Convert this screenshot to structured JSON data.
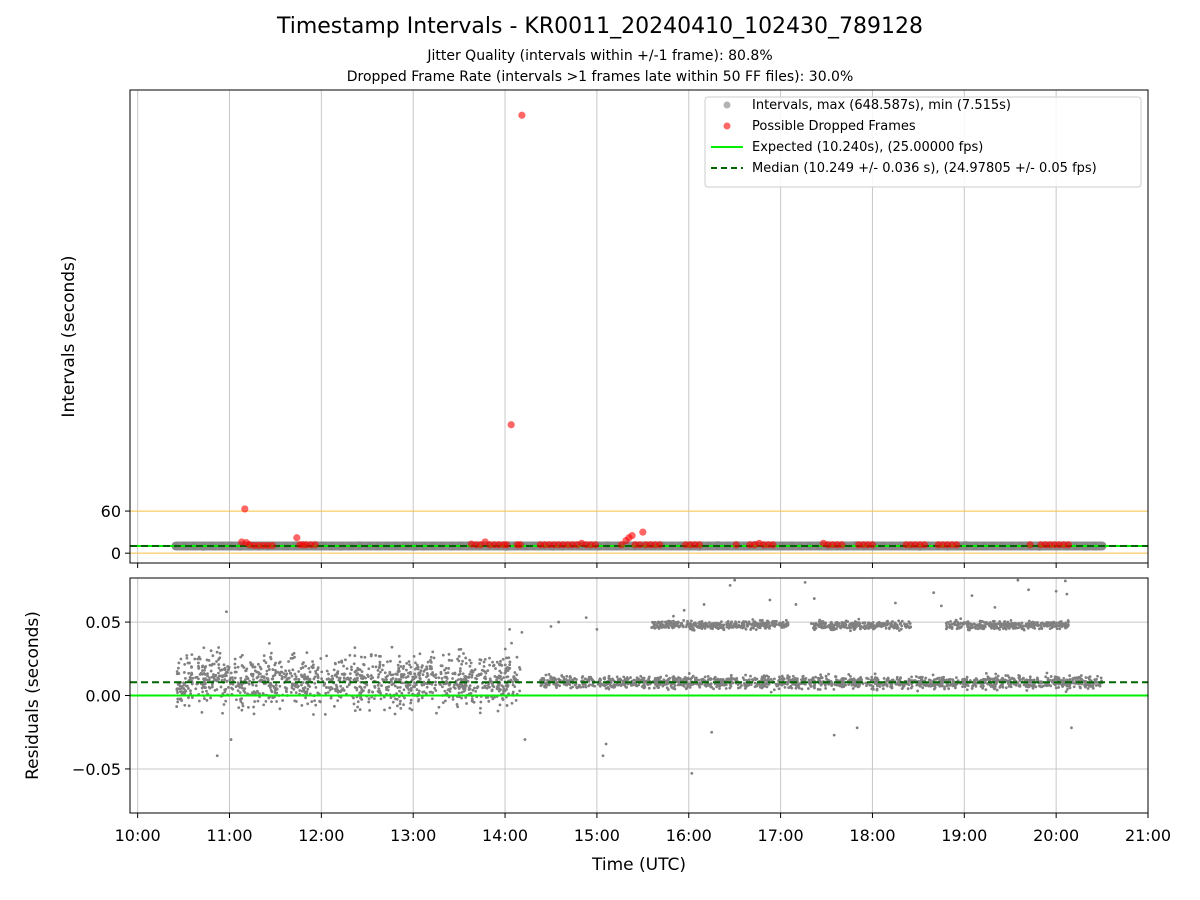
{
  "title": "Timestamp Intervals - KR0011_20240410_102430_789128",
  "subtitle_jitter": "Jitter Quality (intervals within +/-1 frame): 80.8%",
  "subtitle_dropped": "Dropped Frame Rate (intervals >1 frames late within 50 FF files): 30.0%",
  "colors": {
    "intervals": "#808080",
    "dropped": "#ff0000",
    "expected": "#00ee00",
    "median": "#006400",
    "threshold": "#f5c242",
    "grid": "#c8c8c8"
  },
  "chart_data": [
    {
      "type": "scatter",
      "ylabel": "Intervals (seconds)",
      "ylim": [
        -14,
        660
      ],
      "xlim": [
        "09:55",
        "21:00"
      ],
      "yticks": [
        0,
        60
      ],
      "ytick_labels": [
        "0",
        "60"
      ],
      "grid": "vertical",
      "threshold_lines": [
        0,
        60
      ],
      "legend_position": "top-right",
      "legend": [
        {
          "label": "Intervals, max (648.587s), min (7.515s)",
          "marker": "circle",
          "color": "#808080"
        },
        {
          "label": "Possible Dropped Frames",
          "marker": "circle",
          "color": "#ff0000"
        },
        {
          "label": "Expected (10.240s), (25.00000 fps)",
          "marker": "line",
          "color": "#00ee00"
        },
        {
          "label": "Median (10.249 +/- 0.036 s), (24.97805 +/- 0.05 fps)",
          "marker": "dashed",
          "color": "#006400"
        }
      ],
      "series": [
        {
          "name": "Intervals, max (648.587s), min (7.515s)",
          "x_range": [
            "10:25",
            "20:30"
          ],
          "value": 10.24
        },
        {
          "name": "Possible Dropped Frames",
          "points": [
            [
              "11:10",
              63
            ],
            [
              "11:08",
              16
            ],
            [
              "11:11",
              15
            ],
            [
              "11:13",
              12
            ],
            [
              "11:16",
              11
            ],
            [
              "11:19",
              11
            ],
            [
              "11:22",
              11
            ],
            [
              "11:25",
              11
            ],
            [
              "11:28",
              11
            ],
            [
              "11:44",
              22
            ],
            [
              "11:46",
              12
            ],
            [
              "11:48",
              12
            ],
            [
              "11:50",
              12
            ],
            [
              "11:53",
              12
            ],
            [
              "11:56",
              12
            ],
            [
              "13:38",
              13
            ],
            [
              "13:41",
              12
            ],
            [
              "13:44",
              12
            ],
            [
              "13:47",
              16
            ],
            [
              "13:50",
              12
            ],
            [
              "13:53",
              12
            ],
            [
              "13:56",
              12
            ],
            [
              "13:59",
              12
            ],
            [
              "14:01",
              12
            ],
            [
              "14:04",
              183
            ],
            [
              "14:08",
              12
            ],
            [
              "14:10",
              12
            ],
            [
              "14:11",
              624
            ],
            [
              "14:23",
              12
            ],
            [
              "14:26",
              12
            ],
            [
              "14:29",
              12
            ],
            [
              "14:32",
              12
            ],
            [
              "14:35",
              12
            ],
            [
              "14:38",
              12
            ],
            [
              "14:41",
              12
            ],
            [
              "14:44",
              12
            ],
            [
              "14:47",
              12
            ],
            [
              "14:50",
              14
            ],
            [
              "14:53",
              12
            ],
            [
              "14:56",
              12
            ],
            [
              "14:59",
              12
            ],
            [
              "15:16",
              12
            ],
            [
              "15:19",
              18
            ],
            [
              "15:21",
              22
            ],
            [
              "15:23",
              25
            ],
            [
              "15:25",
              12
            ],
            [
              "15:28",
              12
            ],
            [
              "15:30",
              30
            ],
            [
              "15:32",
              12
            ],
            [
              "15:35",
              12
            ],
            [
              "15:38",
              12
            ],
            [
              "15:41",
              12
            ],
            [
              "15:58",
              12
            ],
            [
              "16:01",
              12
            ],
            [
              "16:04",
              12
            ],
            [
              "16:07",
              12
            ],
            [
              "16:31",
              12
            ],
            [
              "16:40",
              12
            ],
            [
              "16:43",
              12
            ],
            [
              "16:46",
              14
            ],
            [
              "16:49",
              12
            ],
            [
              "16:52",
              12
            ],
            [
              "16:55",
              12
            ],
            [
              "17:28",
              14
            ],
            [
              "17:31",
              12
            ],
            [
              "17:34",
              12
            ],
            [
              "17:37",
              12
            ],
            [
              "17:40",
              12
            ],
            [
              "17:51",
              12
            ],
            [
              "17:54",
              12
            ],
            [
              "17:57",
              12
            ],
            [
              "18:00",
              12
            ],
            [
              "18:22",
              12
            ],
            [
              "18:25",
              12
            ],
            [
              "18:28",
              12
            ],
            [
              "18:31",
              12
            ],
            [
              "18:34",
              12
            ],
            [
              "18:43",
              12
            ],
            [
              "18:46",
              12
            ],
            [
              "18:49",
              12
            ],
            [
              "18:52",
              12
            ],
            [
              "18:55",
              12
            ],
            [
              "19:43",
              12
            ],
            [
              "19:50",
              12
            ],
            [
              "19:53",
              12
            ],
            [
              "19:56",
              12
            ],
            [
              "19:59",
              12
            ],
            [
              "20:02",
              12
            ],
            [
              "20:05",
              12
            ],
            [
              "20:08",
              12
            ]
          ]
        },
        {
          "name": "Expected (10.240s), (25.00000 fps)",
          "value": 10.24
        },
        {
          "name": "Median (10.249 +/- 0.036 s), (24.97805 +/- 0.05 fps)",
          "value": 10.249
        }
      ]
    },
    {
      "type": "scatter",
      "ylabel": "Residuals (seconds)",
      "xlabel": "Time (UTC)",
      "ylim": [
        -0.08,
        0.08
      ],
      "yticks": [
        -0.05,
        0.0,
        0.05
      ],
      "ytick_labels": [
        "−0.05",
        "0.00",
        "0.05"
      ],
      "xlim": [
        "09:55",
        "21:00"
      ],
      "xticks": [
        "10:00",
        "11:00",
        "12:00",
        "13:00",
        "14:00",
        "15:00",
        "16:00",
        "17:00",
        "18:00",
        "19:00",
        "20:00",
        "21:00"
      ],
      "grid": "both",
      "series": [
        {
          "name": "residuals",
          "segments": [
            {
              "x_range": [
                "10:25",
                "14:10"
              ],
              "center": 0.01,
              "spread": 0.025
            },
            {
              "x_range": [
                "14:23",
                "20:30"
              ],
              "center": 0.009,
              "spread": 0.006
            },
            {
              "x_range": [
                "15:35",
                "20:08"
              ],
              "center": 0.048,
              "spread": 0.004,
              "gaps": [
                [
                  "17:05",
                  "17:20"
                ],
                [
                  "18:25",
                  "18:48"
                ]
              ]
            }
          ],
          "outliers": [
            [
              "10:52",
              -0.041
            ],
            [
              "11:01",
              -0.03
            ],
            [
              "10:58",
              0.057
            ],
            [
              "14:03",
              0.045
            ],
            [
              "14:11",
              0.043
            ],
            [
              "14:13",
              -0.03
            ],
            [
              "14:30",
              0.047
            ],
            [
              "14:35",
              0.05
            ],
            [
              "14:53",
              0.053
            ],
            [
              "15:00",
              0.045
            ],
            [
              "15:04",
              -0.041
            ],
            [
              "15:06",
              -0.033
            ],
            [
              "16:02",
              -0.053
            ],
            [
              "15:50",
              0.054
            ],
            [
              "15:57",
              0.058
            ],
            [
              "16:10",
              0.062
            ],
            [
              "16:27",
              0.075
            ],
            [
              "16:30",
              0.079
            ],
            [
              "16:53",
              0.065
            ],
            [
              "17:10",
              0.062
            ],
            [
              "17:16",
              0.077
            ],
            [
              "17:22",
              0.066
            ],
            [
              "18:15",
              0.063
            ],
            [
              "18:40",
              0.07
            ],
            [
              "18:45",
              0.061
            ],
            [
              "19:05",
              0.068
            ],
            [
              "19:20",
              0.06
            ],
            [
              "19:35",
              0.079
            ],
            [
              "19:42",
              0.072
            ],
            [
              "20:00",
              0.071
            ],
            [
              "20:07",
              0.069
            ],
            [
              "20:06",
              0.078
            ],
            [
              "20:10",
              -0.022
            ],
            [
              "16:15",
              -0.025
            ],
            [
              "17:35",
              -0.027
            ],
            [
              "17:50",
              -0.022
            ]
          ]
        },
        {
          "name": "Expected",
          "value": 0.0
        },
        {
          "name": "Median",
          "value": 0.009
        }
      ]
    }
  ]
}
